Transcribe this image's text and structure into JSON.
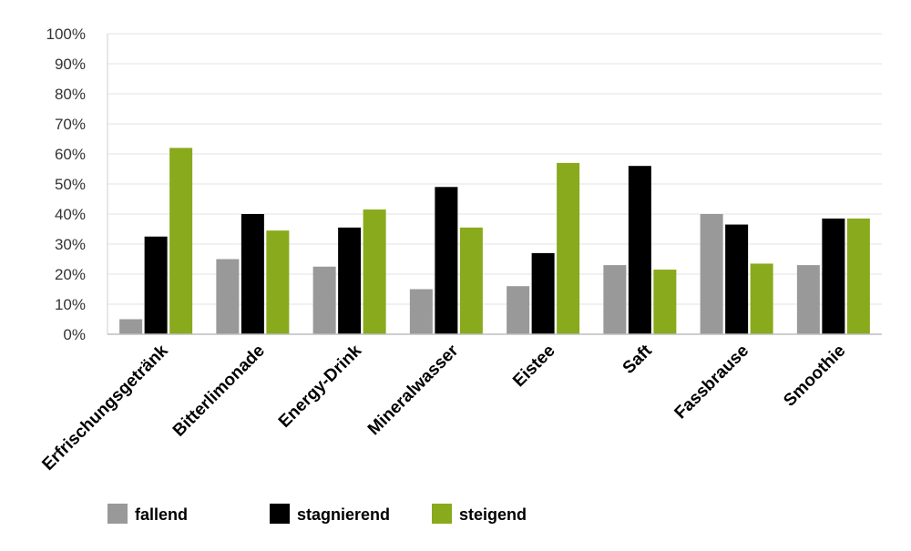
{
  "chart_data": {
    "type": "bar",
    "categories": [
      "Erfrischungsgetränk",
      "Bitterlimonade",
      "Energy-Drink",
      "Mineralwasser",
      "Eistee",
      "Saft",
      "Fassbrause",
      "Smoothie"
    ],
    "series": [
      {
        "name": "fallend",
        "color": "#999999",
        "values": [
          5,
          25,
          22.5,
          15,
          16,
          23,
          40,
          23
        ]
      },
      {
        "name": "stagnierend",
        "color": "#000000",
        "values": [
          32.5,
          40,
          35.5,
          49,
          27,
          56,
          36.5,
          38.5
        ]
      },
      {
        "name": "steigend",
        "color": "#88AA1C",
        "values": [
          62,
          34.5,
          41.5,
          35.5,
          57,
          21.5,
          23.5,
          38.5
        ]
      }
    ],
    "yticks": [
      "0%",
      "10%",
      "20%",
      "30%",
      "40%",
      "50%",
      "60%",
      "70%",
      "80%",
      "90%",
      "100%"
    ],
    "ylim": [
      0,
      100
    ],
    "grid": true,
    "legend_position": "bottom-left"
  }
}
